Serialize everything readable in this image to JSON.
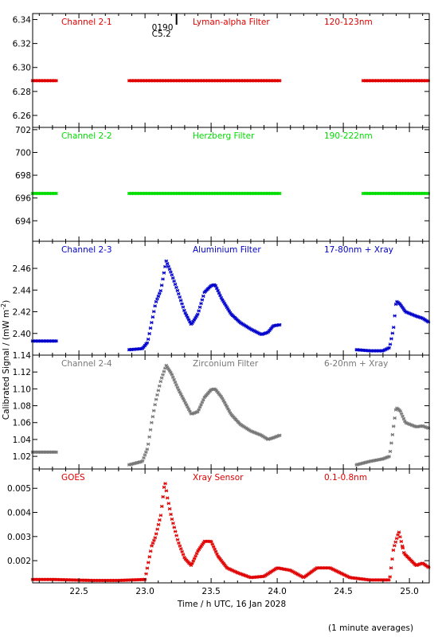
{
  "colors": {
    "red": "#e00000",
    "green": "#00dd00",
    "blue": "#0000cc",
    "grey": "#777777",
    "black": "#000000"
  },
  "ylabel": "Calibrated Signal / (mW m",
  "ylabel_sup": "-2",
  "ylabel_close": ")",
  "xlabel": "Time / h UTC, 16 Jan 2028",
  "footnote": "(1 minute averages)",
  "marker": {
    "line1": "0190",
    "line2": "C5.2",
    "x": 23.16
  },
  "chart_data": [
    {
      "type": "scatter",
      "name": "Channel 2-1",
      "filter": "Lyman-alpha Filter",
      "band": "120-123nm",
      "color": "#e00000",
      "xlim": [
        22.15,
        25.15
      ],
      "ylim": [
        6.25,
        6.345
      ],
      "yticks": [
        "6.26",
        "6.28",
        "6.30",
        "6.32",
        "6.34"
      ],
      "x": [
        22.15,
        22.33,
        22.88,
        24.02,
        24.65,
        25.15
      ],
      "y": [
        6.289,
        6.289,
        6.289,
        6.289,
        6.289,
        6.289
      ],
      "segments": [
        [
          22.15,
          22.33
        ],
        [
          22.88,
          24.02
        ],
        [
          24.65,
          25.15
        ]
      ]
    },
    {
      "type": "scatter",
      "name": "Channel 2-2",
      "filter": "Herzberg Filter",
      "band": "190-222nm",
      "color": "#00dd00",
      "xlim": [
        22.15,
        25.15
      ],
      "ylim": [
        692.2,
        702.2
      ],
      "yticks": [
        "694",
        "696",
        "698",
        "700",
        "702"
      ],
      "x": [
        22.15,
        22.33,
        22.88,
        24.02,
        24.65,
        25.15
      ],
      "y": [
        696.4,
        696.4,
        696.4,
        696.4,
        696.4,
        696.4
      ],
      "segments": [
        [
          22.15,
          22.33
        ],
        [
          22.88,
          24.02
        ],
        [
          24.65,
          25.15
        ]
      ]
    },
    {
      "type": "scatter",
      "name": "Channel 2-3",
      "filter": "Aluminium Filter",
      "band": "17-80nm + Xray",
      "color": "#0000cc",
      "xlim": [
        22.15,
        25.15
      ],
      "ylim": [
        2.38,
        2.485
      ],
      "yticks": [
        "2.40",
        "2.42",
        "2.44",
        "2.46"
      ],
      "x": [
        22.15,
        22.33,
        22.88,
        22.98,
        23.02,
        23.05,
        23.08,
        23.12,
        23.16,
        23.2,
        23.25,
        23.3,
        23.35,
        23.4,
        23.45,
        23.5,
        23.53,
        23.58,
        23.65,
        23.72,
        23.8,
        23.88,
        23.93,
        23.97,
        24.02,
        24.6,
        24.7,
        24.8,
        24.85,
        24.88,
        24.9,
        24.93,
        24.97,
        25.05,
        25.1,
        25.15
      ],
      "y": [
        2.393,
        2.393,
        2.385,
        2.386,
        2.392,
        2.41,
        2.428,
        2.44,
        2.467,
        2.455,
        2.438,
        2.42,
        2.408,
        2.418,
        2.438,
        2.444,
        2.445,
        2.432,
        2.418,
        2.41,
        2.404,
        2.399,
        2.401,
        2.407,
        2.408,
        2.385,
        2.384,
        2.384,
        2.387,
        2.405,
        2.43,
        2.427,
        2.42,
        2.416,
        2.414,
        2.41
      ],
      "segments": [
        [
          22.15,
          22.33
        ],
        [
          22.88,
          24.02
        ],
        [
          24.6,
          25.15
        ]
      ]
    },
    {
      "type": "scatter",
      "name": "Channel 2-4",
      "filter": "Zirconium Filter",
      "band": "6-20nm + Xray",
      "color": "#777777",
      "xlim": [
        22.15,
        25.15
      ],
      "ylim": [
        1.005,
        1.14
      ],
      "yticks": [
        "1.02",
        "1.04",
        "1.06",
        "1.08",
        "1.10",
        "1.12",
        "1.14"
      ],
      "x": [
        22.15,
        22.33,
        22.88,
        22.98,
        23.02,
        23.05,
        23.08,
        23.12,
        23.16,
        23.2,
        23.25,
        23.3,
        23.35,
        23.4,
        23.45,
        23.5,
        23.53,
        23.58,
        23.65,
        23.72,
        23.8,
        23.88,
        23.93,
        23.97,
        24.02,
        24.6,
        24.7,
        24.8,
        24.85,
        24.88,
        24.9,
        24.93,
        24.97,
        25.05,
        25.1,
        25.15
      ],
      "y": [
        1.025,
        1.025,
        1.01,
        1.014,
        1.03,
        1.06,
        1.085,
        1.11,
        1.128,
        1.118,
        1.1,
        1.085,
        1.07,
        1.073,
        1.09,
        1.099,
        1.1,
        1.09,
        1.07,
        1.058,
        1.05,
        1.045,
        1.04,
        1.042,
        1.045,
        1.01,
        1.014,
        1.017,
        1.02,
        1.055,
        1.078,
        1.074,
        1.06,
        1.055,
        1.056,
        1.053
      ],
      "segments": [
        [
          22.15,
          22.33
        ],
        [
          22.88,
          24.02
        ],
        [
          24.6,
          25.15
        ]
      ]
    },
    {
      "type": "scatter",
      "name": "GOES",
      "filter": "Xray Sensor",
      "band": "0.1-0.8nm",
      "color": "#e00000",
      "xlim": [
        22.15,
        25.15
      ],
      "ylim": [
        0.00108,
        0.0058
      ],
      "yticks": [
        "0.002",
        "0.003",
        "0.004",
        "0.005"
      ],
      "x": [
        22.15,
        22.3,
        22.6,
        22.8,
        23.0,
        23.05,
        23.08,
        23.12,
        23.15,
        23.17,
        23.2,
        23.25,
        23.3,
        23.35,
        23.4,
        23.45,
        23.5,
        23.55,
        23.62,
        23.7,
        23.8,
        23.9,
        24.0,
        24.1,
        24.2,
        24.3,
        24.4,
        24.55,
        24.7,
        24.85,
        24.88,
        24.92,
        24.96,
        25.05,
        25.1,
        25.15
      ],
      "y": [
        0.00122,
        0.00122,
        0.00118,
        0.00118,
        0.00122,
        0.0026,
        0.003,
        0.0039,
        0.0053,
        0.0046,
        0.0038,
        0.0028,
        0.0021,
        0.0018,
        0.0024,
        0.0028,
        0.0028,
        0.0022,
        0.0017,
        0.0015,
        0.0013,
        0.00135,
        0.0017,
        0.0016,
        0.0013,
        0.0017,
        0.0017,
        0.0013,
        0.0012,
        0.0012,
        0.0025,
        0.0032,
        0.0023,
        0.0018,
        0.0019,
        0.0017
      ],
      "segments": [
        [
          22.15,
          24.95
        ],
        [
          24.95,
          25.15
        ]
      ]
    }
  ],
  "xticks": [
    "22.5",
    "23.0",
    "23.5",
    "24.0",
    "24.5",
    "25.0"
  ]
}
